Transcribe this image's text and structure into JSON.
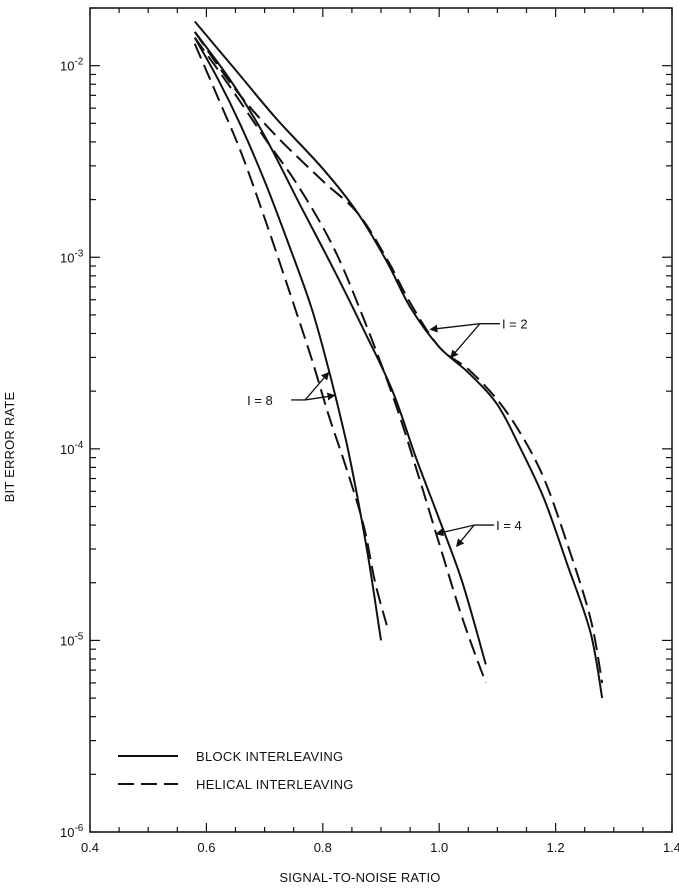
{
  "chart_data": {
    "type": "line",
    "title": "",
    "xlabel": "SIGNAL-TO-NOISE RATIO",
    "ylabel": "BIT ERROR RATE",
    "xlim": [
      0.4,
      1.4
    ],
    "ylim": [
      1e-06,
      0.02
    ],
    "yscale": "log",
    "grid": false,
    "legend_placement": "bottom-left",
    "x_ticks": [
      {
        "value": 0.4,
        "label": "0.4"
      },
      {
        "value": 0.6,
        "label": "0.6"
      },
      {
        "value": 0.8,
        "label": "0.8"
      },
      {
        "value": 1.0,
        "label": "1.0"
      },
      {
        "value": 1.2,
        "label": "1.2"
      },
      {
        "value": 1.4,
        "label": "1.4"
      }
    ],
    "y_ticks": [
      {
        "value": 0.01,
        "mantissa": "10",
        "exponent": "-2"
      },
      {
        "value": 0.001,
        "mantissa": "10",
        "exponent": "-3"
      },
      {
        "value": 0.0001,
        "mantissa": "10",
        "exponent": "-4"
      },
      {
        "value": 1e-05,
        "mantissa": "10",
        "exponent": "-5"
      },
      {
        "value": 1e-06,
        "mantissa": "10",
        "exponent": "-6"
      }
    ],
    "legend": [
      {
        "style": "solid",
        "label": "BLOCK INTERLEAVING"
      },
      {
        "style": "dashed",
        "label": "HELICAL INTERLEAVING"
      }
    ],
    "series": [
      {
        "group": "I = 2",
        "style": "solid",
        "points": [
          [
            0.58,
            0.017
          ],
          [
            0.65,
            0.0095
          ],
          [
            0.72,
            0.0053
          ],
          [
            0.8,
            0.0029
          ],
          [
            0.86,
            0.0017
          ],
          [
            0.91,
            0.00095
          ],
          [
            0.95,
            0.00055
          ],
          [
            1.0,
            0.00034
          ],
          [
            1.05,
            0.00025
          ],
          [
            1.1,
            0.00017
          ],
          [
            1.14,
            0.0001
          ],
          [
            1.18,
            5.5e-05
          ],
          [
            1.22,
            2.5e-05
          ],
          [
            1.26,
            1.1e-05
          ],
          [
            1.28,
            5e-06
          ]
        ]
      },
      {
        "group": "I = 2",
        "style": "dashed",
        "points": [
          [
            0.58,
            0.015
          ],
          [
            0.65,
            0.0075
          ],
          [
            0.72,
            0.0043
          ],
          [
            0.8,
            0.0025
          ],
          [
            0.86,
            0.0017
          ],
          [
            0.91,
            0.00098
          ],
          [
            0.95,
            0.00058
          ],
          [
            1.0,
            0.00034
          ],
          [
            1.05,
            0.00026
          ],
          [
            1.1,
            0.00018
          ],
          [
            1.14,
            0.00012
          ],
          [
            1.18,
            7e-05
          ],
          [
            1.22,
            3.2e-05
          ],
          [
            1.26,
            1.3e-05
          ],
          [
            1.28,
            6e-06
          ]
        ]
      },
      {
        "group": "I = 4",
        "style": "solid",
        "points": [
          [
            0.58,
            0.015
          ],
          [
            0.64,
            0.0085
          ],
          [
            0.7,
            0.0043
          ],
          [
            0.76,
            0.0019
          ],
          [
            0.82,
            0.00085
          ],
          [
            0.87,
            0.00042
          ],
          [
            0.92,
            0.0002
          ],
          [
            0.96,
            9e-05
          ],
          [
            1.0,
            4.3e-05
          ],
          [
            1.04,
            2e-05
          ],
          [
            1.08,
            7.5e-06
          ]
        ]
      },
      {
        "group": "I = 4",
        "style": "dashed",
        "points": [
          [
            0.58,
            0.014
          ],
          [
            0.64,
            0.0078
          ],
          [
            0.7,
            0.0042
          ],
          [
            0.76,
            0.0023
          ],
          [
            0.82,
            0.0011
          ],
          [
            0.87,
            0.00048
          ],
          [
            0.92,
            0.00019
          ],
          [
            0.96,
            8e-05
          ],
          [
            1.0,
            3.2e-05
          ],
          [
            1.04,
            1.3e-05
          ],
          [
            1.08,
            6e-06
          ]
        ]
      },
      {
        "group": "I = 8",
        "style": "solid",
        "points": [
          [
            0.58,
            0.014
          ],
          [
            0.62,
            0.0085
          ],
          [
            0.66,
            0.0048
          ],
          [
            0.7,
            0.0025
          ],
          [
            0.74,
            0.0012
          ],
          [
            0.78,
            0.00055
          ],
          [
            0.81,
            0.00026
          ],
          [
            0.84,
            0.00011
          ],
          [
            0.86,
            5.5e-05
          ],
          [
            0.88,
            2.5e-05
          ],
          [
            0.9,
            1e-05
          ]
        ]
      },
      {
        "group": "I = 8",
        "style": "dashed",
        "points": [
          [
            0.58,
            0.013
          ],
          [
            0.62,
            0.0068
          ],
          [
            0.66,
            0.0035
          ],
          [
            0.7,
            0.0016
          ],
          [
            0.74,
            0.0007
          ],
          [
            0.78,
            0.0003
          ],
          [
            0.81,
            0.00015
          ],
          [
            0.84,
            8e-05
          ],
          [
            0.87,
            4e-05
          ],
          [
            0.89,
            2e-05
          ],
          [
            0.91,
            1.2e-05
          ]
        ]
      }
    ],
    "annotations": [
      {
        "label": "I = 2",
        "text_at": [
          1.07,
          0.00045
        ],
        "arrows_to": [
          [
            0.985,
            0.00042
          ],
          [
            1.02,
            0.0003
          ]
        ]
      },
      {
        "label": "I = 4",
        "text_at": [
          1.06,
          4e-05
        ],
        "arrows_to": [
          [
            0.995,
            3.6e-05
          ],
          [
            1.03,
            3.1e-05
          ]
        ]
      },
      {
        "label": "I = 8",
        "text_at": [
          0.67,
          0.00018
        ],
        "arrows_to": [
          [
            0.81,
            0.00025
          ],
          [
            0.82,
            0.00019
          ]
        ]
      }
    ]
  }
}
